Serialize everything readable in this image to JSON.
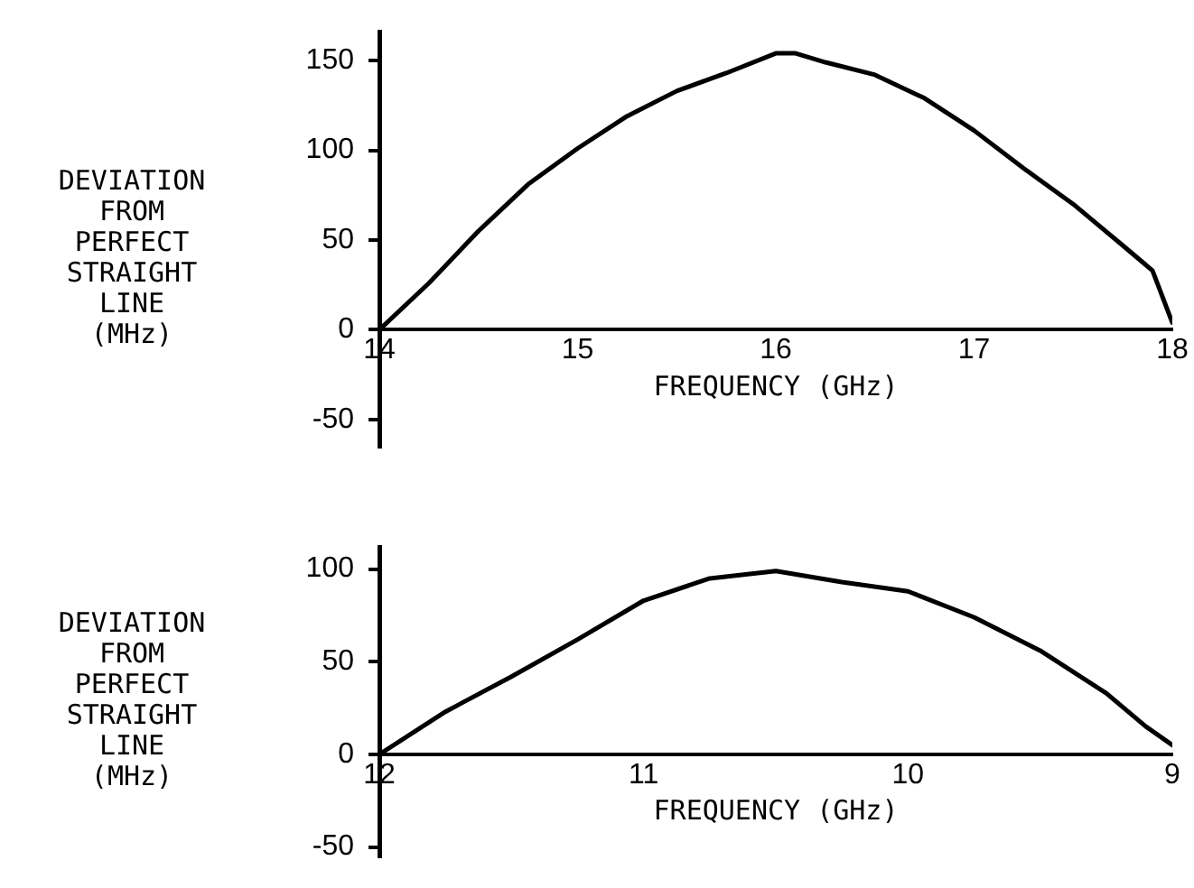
{
  "chart_data": [
    {
      "type": "line",
      "xlabel": "FREQUENCY (GHz)",
      "ylabel": "DEVIATION\nFROM\nPERFECT\nSTRAIGHT\nLINE\n(MHz)",
      "xlim": [
        14,
        18
      ],
      "xticks": [
        14,
        15,
        16,
        17,
        18
      ],
      "ylim": [
        -65,
        166
      ],
      "yticks": [
        -50,
        0,
        50,
        100,
        150
      ],
      "marker": "none",
      "line_style": "solid",
      "series": [
        {
          "color": "#000000",
          "x": [
            14,
            14.25,
            14.5,
            14.75,
            15,
            15.25,
            15.5,
            15.75,
            16,
            16.1,
            16.25,
            16.5,
            16.75,
            17,
            17.25,
            17.5,
            17.75,
            17.9,
            18
          ],
          "values": [
            0,
            26,
            55,
            81,
            101,
            119,
            133,
            143,
            154,
            154,
            149,
            142,
            129,
            111,
            90,
            70,
            47,
            33,
            4
          ]
        }
      ]
    },
    {
      "type": "line",
      "xlabel": "FREQUENCY (GHz)",
      "ylabel": "DEVIATION\nFROM\nPERFECT\nSTRAIGHT\nLINE\n(MHz)",
      "xlim": [
        12,
        9
      ],
      "xticks": [
        12,
        11,
        10,
        9
      ],
      "ylim": [
        -55,
        112
      ],
      "yticks": [
        -50,
        0,
        50,
        100
      ],
      "marker": "none",
      "line_style": "solid",
      "series": [
        {
          "color": "#000000",
          "x": [
            12,
            11.75,
            11.5,
            11.25,
            11,
            10.75,
            10.5,
            10.25,
            10,
            9.75,
            9.5,
            9.25,
            9.1,
            9
          ],
          "values": [
            0,
            23,
            42,
            62,
            83,
            95,
            99,
            93,
            88,
            74,
            56,
            33,
            15,
            5
          ]
        }
      ]
    }
  ]
}
